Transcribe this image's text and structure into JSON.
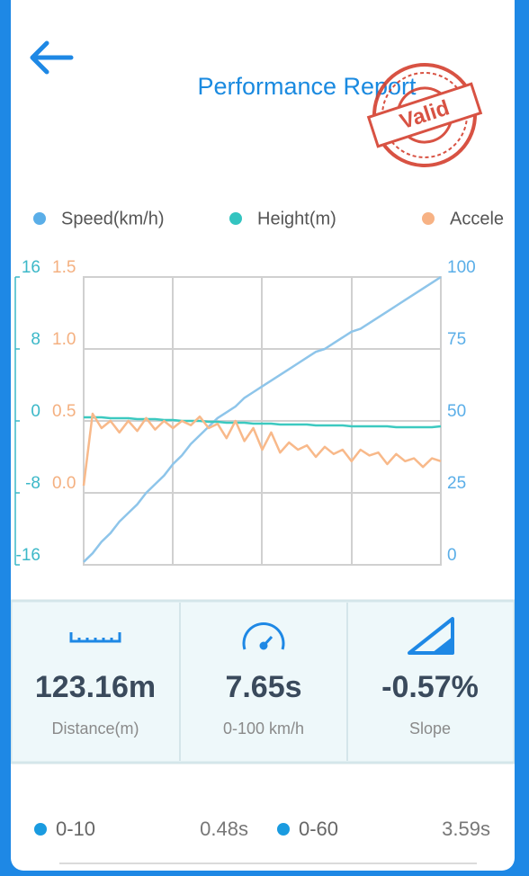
{
  "header": {
    "title": "Performance Report",
    "stamp": "Valid"
  },
  "chart_data": {
    "type": "line",
    "series": [
      {
        "name": "Speed(km/h)",
        "color": "#8ec5ea",
        "marker_color": "#5aaee8",
        "axis": "y2",
        "values": [
          1,
          4,
          8,
          11,
          15,
          18,
          21,
          25,
          28,
          31,
          35,
          38,
          42,
          45,
          48,
          51,
          53,
          55,
          58,
          60,
          62,
          64,
          66,
          68,
          70,
          72,
          74,
          75,
          77,
          79,
          81,
          82,
          84,
          86,
          88,
          90,
          92,
          94,
          96,
          98,
          100
        ]
      },
      {
        "name": "Height(m)",
        "color": "#3cc9c0",
        "marker_color": "#33c4c0",
        "axis": "y",
        "values": [
          0.4,
          0.4,
          0.4,
          0.3,
          0.3,
          0.3,
          0.2,
          0.2,
          0.2,
          0.1,
          0.1,
          0,
          0,
          0,
          -0.1,
          -0.1,
          -0.2,
          -0.2,
          -0.2,
          -0.3,
          -0.3,
          -0.3,
          -0.4,
          -0.4,
          -0.4,
          -0.4,
          -0.5,
          -0.5,
          -0.5,
          -0.5,
          -0.6,
          -0.6,
          -0.6,
          -0.6,
          -0.6,
          -0.7,
          -0.7,
          -0.7,
          -0.7,
          -0.7,
          -0.6
        ]
      },
      {
        "name": "Accele",
        "color": "#f8b98a",
        "marker_color": "#f7b284",
        "axis": "y3",
        "values": [
          0.05,
          0.55,
          0.45,
          0.5,
          0.42,
          0.5,
          0.43,
          0.52,
          0.44,
          0.5,
          0.45,
          0.5,
          0.47,
          0.53,
          0.45,
          0.48,
          0.38,
          0.5,
          0.36,
          0.45,
          0.3,
          0.42,
          0.28,
          0.35,
          0.3,
          0.33,
          0.25,
          0.32,
          0.27,
          0.3,
          0.22,
          0.3,
          0.26,
          0.28,
          0.2,
          0.27,
          0.22,
          0.24,
          0.18,
          0.24,
          0.22
        ]
      }
    ],
    "ylim": [
      -16,
      16
    ],
    "yticks": [
      16,
      8,
      0,
      -8,
      -16
    ],
    "y_color": "#3cb8c8",
    "y3lim": [
      -0.5,
      1.5
    ],
    "y3ticks": [
      1.5,
      {
        "value": 1,
        "label": "1.0"
      },
      0.5,
      {
        "value": 0,
        "label": "0.0"
      }
    ],
    "y3_color": "#f4b080",
    "y2lim": [
      0,
      100
    ],
    "y2ticks": [
      100,
      75,
      50,
      25,
      0
    ],
    "y2_color": "#5aaee8",
    "grid": true
  },
  "stats": [
    {
      "value": "123.16m",
      "label": "Distance(m)"
    },
    {
      "value": "7.65s",
      "label": "0-100 km/h"
    },
    {
      "value": "-0.57%",
      "label": "Slope"
    }
  ],
  "splits": [
    {
      "label": "0-10",
      "time": "0.48s"
    },
    {
      "label": "0-60",
      "time": "3.59s"
    }
  ]
}
